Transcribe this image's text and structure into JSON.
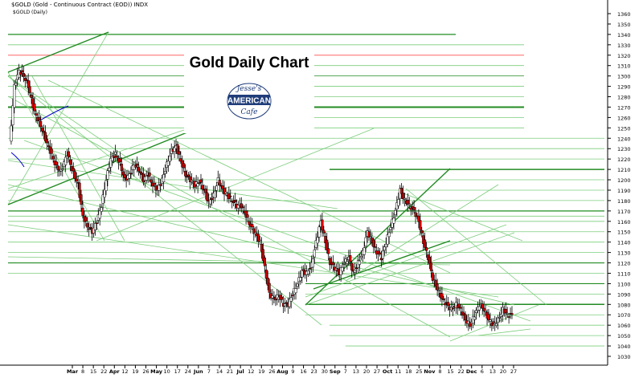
{
  "header": {
    "symbol_line": "$GOLD (Gold - Continuous Contract (EOD)) INDX",
    "period_line": "$GOLD (Daily)"
  },
  "logo": {
    "line1": "Jesse's",
    "line2": "AMERICAN",
    "line3": "Cafe"
  },
  "colors": {
    "up": "#ffffff",
    "down": "#dd0000",
    "wick": "#000000",
    "support_line": "#228b22",
    "thin_line": "#7ccd7c",
    "red_line": "#ff6666",
    "blue_line": "#0000cc"
  },
  "chart_data": {
    "type": "candlestick",
    "title": "Gold Daily Chart",
    "ylim": [
      1030,
      1360
    ],
    "y_ticks": [
      1360,
      1350,
      1340,
      1330,
      1320,
      1310,
      1300,
      1290,
      1280,
      1270,
      1260,
      1250,
      1240,
      1230,
      1220,
      1210,
      1200,
      1190,
      1180,
      1170,
      1160,
      1150,
      1140,
      1130,
      1120,
      1110,
      1100,
      1090,
      1080,
      1070,
      1060,
      1050,
      1040,
      1030
    ],
    "x_ticks": [
      {
        "label": "Mar",
        "month": true
      },
      {
        "label": "8"
      },
      {
        "label": "15"
      },
      {
        "label": "22"
      },
      {
        "label": "Apr",
        "month": true
      },
      {
        "label": "12"
      },
      {
        "label": "19"
      },
      {
        "label": "26"
      },
      {
        "label": "May",
        "month": true
      },
      {
        "label": "10"
      },
      {
        "label": "17"
      },
      {
        "label": "24"
      },
      {
        "label": "Jun",
        "month": true
      },
      {
        "label": "7"
      },
      {
        "label": "14"
      },
      {
        "label": "21"
      },
      {
        "label": "Jul",
        "month": true
      },
      {
        "label": "12"
      },
      {
        "label": "19"
      },
      {
        "label": "26"
      },
      {
        "label": "Aug",
        "month": true
      },
      {
        "label": "9"
      },
      {
        "label": "16"
      },
      {
        "label": "23"
      },
      {
        "label": "30"
      },
      {
        "label": "Sep",
        "month": true
      },
      {
        "label": "7"
      },
      {
        "label": "13"
      },
      {
        "label": "20"
      },
      {
        "label": "27"
      },
      {
        "label": "Oct",
        "month": true
      },
      {
        "label": "11"
      },
      {
        "label": "18"
      },
      {
        "label": "25"
      },
      {
        "label": "Nov",
        "month": true
      },
      {
        "label": "8"
      },
      {
        "label": "15"
      },
      {
        "label": "22"
      },
      {
        "label": "Dec",
        "month": true
      },
      {
        "label": "6"
      },
      {
        "label": "13"
      },
      {
        "label": "20"
      },
      {
        "label": "27"
      }
    ],
    "price_path": [
      [
        0,
        1235
      ],
      [
        3,
        1290
      ],
      [
        6,
        1305
      ],
      [
        9,
        1300
      ],
      [
        12,
        1290
      ],
      [
        16,
        1265
      ],
      [
        20,
        1252
      ],
      [
        24,
        1235
      ],
      [
        28,
        1220
      ],
      [
        30,
        1212
      ],
      [
        33,
        1208
      ],
      [
        37,
        1225
      ],
      [
        40,
        1210
      ],
      [
        44,
        1195
      ],
      [
        47,
        1165
      ],
      [
        50,
        1155
      ],
      [
        53,
        1150
      ],
      [
        56,
        1160
      ],
      [
        59,
        1175
      ],
      [
        62,
        1200
      ],
      [
        65,
        1220
      ],
      [
        68,
        1225
      ],
      [
        71,
        1215
      ],
      [
        74,
        1200
      ],
      [
        77,
        1205
      ],
      [
        80,
        1215
      ],
      [
        83,
        1210
      ],
      [
        86,
        1200
      ],
      [
        89,
        1205
      ],
      [
        92,
        1195
      ],
      [
        95,
        1190
      ],
      [
        98,
        1200
      ],
      [
        101,
        1215
      ],
      [
        104,
        1228
      ],
      [
        107,
        1232
      ],
      [
        110,
        1218
      ],
      [
        113,
        1205
      ],
      [
        116,
        1200
      ],
      [
        119,
        1195
      ],
      [
        122,
        1198
      ],
      [
        125,
        1190
      ],
      [
        128,
        1178
      ],
      [
        131,
        1185
      ],
      [
        134,
        1200
      ],
      [
        137,
        1190
      ],
      [
        140,
        1185
      ],
      [
        143,
        1180
      ],
      [
        146,
        1175
      ],
      [
        149,
        1175
      ],
      [
        152,
        1165
      ],
      [
        155,
        1155
      ],
      [
        158,
        1148
      ],
      [
        161,
        1140
      ],
      [
        164,
        1115
      ],
      [
        167,
        1090
      ],
      [
        170,
        1085
      ],
      [
        173,
        1088
      ],
      [
        176,
        1080
      ],
      [
        179,
        1080
      ],
      [
        182,
        1090
      ],
      [
        185,
        1100
      ],
      [
        188,
        1112
      ],
      [
        191,
        1110
      ],
      [
        194,
        1118
      ],
      [
        197,
        1140
      ],
      [
        200,
        1160
      ],
      [
        203,
        1140
      ],
      [
        206,
        1120
      ],
      [
        209,
        1115
      ],
      [
        212,
        1110
      ],
      [
        215,
        1120
      ],
      [
        218,
        1125
      ],
      [
        221,
        1110
      ],
      [
        224,
        1120
      ],
      [
        227,
        1130
      ],
      [
        230,
        1150
      ],
      [
        233,
        1140
      ],
      [
        236,
        1130
      ],
      [
        239,
        1125
      ],
      [
        242,
        1140
      ],
      [
        245,
        1155
      ],
      [
        248,
        1170
      ],
      [
        251,
        1190
      ],
      [
        254,
        1180
      ],
      [
        257,
        1175
      ],
      [
        260,
        1170
      ],
      [
        263,
        1160
      ],
      [
        266,
        1140
      ],
      [
        269,
        1125
      ],
      [
        272,
        1105
      ],
      [
        275,
        1095
      ],
      [
        278,
        1085
      ],
      [
        281,
        1080
      ],
      [
        284,
        1075
      ],
      [
        287,
        1080
      ],
      [
        290,
        1075
      ],
      [
        293,
        1065
      ],
      [
        296,
        1060
      ],
      [
        299,
        1070
      ],
      [
        302,
        1080
      ],
      [
        305,
        1075
      ],
      [
        308,
        1065
      ],
      [
        311,
        1060
      ],
      [
        314,
        1065
      ],
      [
        317,
        1075
      ],
      [
        320,
        1070
      ],
      [
        323,
        1070
      ]
    ]
  }
}
